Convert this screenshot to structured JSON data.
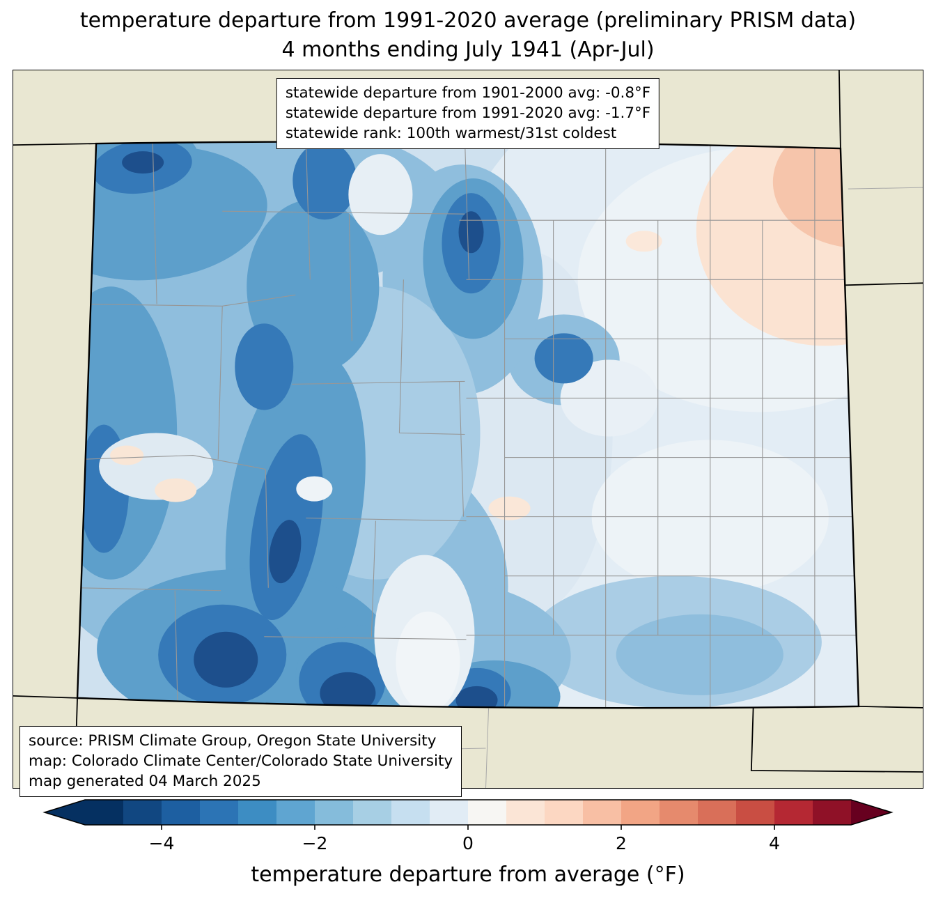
{
  "title": {
    "line1": "temperature departure from 1991-2020 average (preliminary PRISM data)",
    "line2": "4 months ending July 1941 (Apr-Jul)"
  },
  "stats_box": {
    "line1": "statewide departure from 1901-2000 avg: -0.8°F",
    "line2": "statewide departure from 1991-2020 avg: -1.7°F",
    "line3": "statewide rank: 100th warmest/31st coldest"
  },
  "source_box": {
    "line1": "source: PRISM Climate Group, Oregon State University",
    "line2": "map: Colorado Climate Center/Colorado State University",
    "line3": "map generated 04 March 2025"
  },
  "colorbar": {
    "label": "temperature departure from average (°F)",
    "range": [
      -5,
      5
    ],
    "ticks": [
      {
        "value": -4,
        "label": "−4"
      },
      {
        "value": -2,
        "label": "−2"
      },
      {
        "value": 0,
        "label": "0"
      },
      {
        "value": 2,
        "label": "2"
      },
      {
        "value": 4,
        "label": "4"
      }
    ],
    "segment_colors": [
      "#053061",
      "#114781",
      "#1d5fa1",
      "#2c74b5",
      "#3d8dc3",
      "#5fa5d1",
      "#85bcdb",
      "#a7cfe4",
      "#c6dff0",
      "#e1ecf5",
      "#f7f6f3",
      "#fbe5d6",
      "#fcd7c2",
      "#f8bfa4",
      "#f2a585",
      "#e68a6d",
      "#d96f59",
      "#c94e43",
      "#b52833",
      "#8f1127"
    ],
    "left_arrow_color": "#053061",
    "right_arrow_color": "#67001f"
  },
  "map_colors": {
    "background_land": "#e9e7d2",
    "state_border": "#000000",
    "county_line": "#979797",
    "base_fill": "#cfe1ef"
  }
}
